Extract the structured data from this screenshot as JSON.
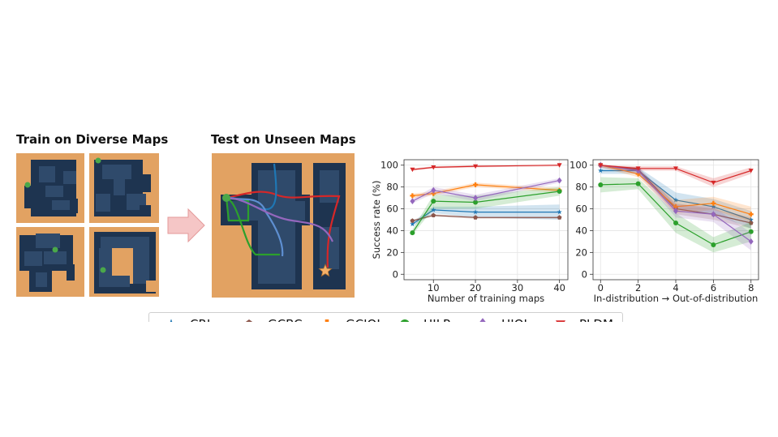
{
  "panels": {
    "train_title": "Train on Diverse Maps",
    "test_title": "Test on Unseen Maps"
  },
  "colors": {
    "floor": "#e2a262",
    "wall": "#1e3450",
    "corridor": "#2f4a6b",
    "agent": "#4aa84a",
    "goal": "#f4b069",
    "arrow": "#f5c6c6"
  },
  "legend": [
    "CRL",
    "GCBC",
    "GCIQL",
    "HILP",
    "HIQL",
    "PLDM"
  ],
  "chart_data": [
    {
      "type": "line",
      "title": "",
      "xlabel": "Number of training maps",
      "ylabel": "Success rate (%)",
      "xlim": [
        3,
        42
      ],
      "ylim": [
        -5,
        105
      ],
      "xticks": [
        10,
        20,
        30,
        40
      ],
      "yticks": [
        0,
        20,
        40,
        60,
        80,
        100
      ],
      "grid": true,
      "x": [
        5,
        10,
        20,
        40
      ],
      "series": [
        {
          "name": "CRL",
          "color": "#1f77b4",
          "marker": "star",
          "values": [
            46,
            59,
            57,
            57
          ],
          "band": [
            [
              44,
              48
            ],
            [
              56,
              62
            ],
            [
              52,
              62
            ],
            [
              50,
              64
            ]
          ]
        },
        {
          "name": "GCBC",
          "color": "#8c564b",
          "marker": "pentagon",
          "values": [
            49,
            54,
            52,
            52
          ],
          "band": [
            [
              48,
              50
            ],
            [
              53,
              55
            ],
            [
              51,
              53
            ],
            [
              51,
              53
            ]
          ]
        },
        {
          "name": "GCIQL",
          "color": "#ff7f0e",
          "marker": "plus",
          "values": [
            72,
            74,
            82,
            77
          ],
          "band": [
            [
              70,
              74
            ],
            [
              72,
              76
            ],
            [
              80,
              84
            ],
            [
              75,
              79
            ]
          ]
        },
        {
          "name": "HILP",
          "color": "#2ca02c",
          "marker": "circle",
          "values": [
            38,
            67,
            66,
            76
          ],
          "band": [
            [
              36,
              41
            ],
            [
              60,
              73
            ],
            [
              60,
              72
            ],
            [
              72,
              80
            ]
          ]
        },
        {
          "name": "HIQL",
          "color": "#9467bd",
          "marker": "diamond",
          "values": [
            67,
            77,
            70,
            86
          ],
          "band": [
            [
              65,
              69
            ],
            [
              74,
              80
            ],
            [
              67,
              73
            ],
            [
              84,
              88
            ]
          ]
        },
        {
          "name": "PLDM",
          "color": "#d62728",
          "marker": "triangle",
          "values": [
            96,
            98,
            99,
            100
          ],
          "band": [
            [
              95,
              97
            ],
            [
              97,
              99
            ],
            [
              98,
              100
            ],
            [
              99,
              100
            ]
          ]
        }
      ]
    },
    {
      "type": "line",
      "title": "",
      "xlabel": "In-distribution → Out-of-distribution",
      "ylabel": "",
      "xlim": [
        -0.4,
        8.4
      ],
      "ylim": [
        -5,
        105
      ],
      "xticks": [
        0,
        2,
        4,
        6,
        8
      ],
      "yticks": [
        0,
        20,
        40,
        60,
        80,
        100
      ],
      "grid": true,
      "x": [
        0,
        2,
        4,
        6,
        8
      ],
      "series": [
        {
          "name": "CRL",
          "color": "#1f77b4",
          "marker": "star",
          "values": [
            95,
            95,
            68,
            62,
            50
          ],
          "band": [
            [
              92,
              98
            ],
            [
              92,
              98
            ],
            [
              60,
              75
            ],
            [
              55,
              69
            ],
            [
              42,
              58
            ]
          ]
        },
        {
          "name": "GCBC",
          "color": "#8c564b",
          "marker": "pentagon",
          "values": [
            100,
            96,
            60,
            55,
            47
          ],
          "band": [
            [
              98,
              100
            ],
            [
              94,
              98
            ],
            [
              55,
              65
            ],
            [
              50,
              60
            ],
            [
              42,
              52
            ]
          ]
        },
        {
          "name": "GCIQL",
          "color": "#ff7f0e",
          "marker": "plus",
          "values": [
            100,
            92,
            62,
            65,
            55
          ],
          "band": [
            [
              98,
              100
            ],
            [
              89,
              95
            ],
            [
              56,
              68
            ],
            [
              59,
              71
            ],
            [
              48,
              62
            ]
          ]
        },
        {
          "name": "HILP",
          "color": "#2ca02c",
          "marker": "circle",
          "values": [
            82,
            83,
            47,
            27,
            39
          ],
          "band": [
            [
              75,
              89
            ],
            [
              78,
              88
            ],
            [
              38,
              56
            ],
            [
              20,
              34
            ],
            [
              30,
              48
            ]
          ]
        },
        {
          "name": "HIQL",
          "color": "#9467bd",
          "marker": "diamond",
          "values": [
            100,
            95,
            58,
            55,
            30
          ],
          "band": [
            [
              98,
              100
            ],
            [
              92,
              98
            ],
            [
              52,
              64
            ],
            [
              48,
              62
            ],
            [
              22,
              38
            ]
          ]
        },
        {
          "name": "PLDM",
          "color": "#d62728",
          "marker": "triangle",
          "values": [
            100,
            97,
            97,
            84,
            95
          ],
          "band": [
            [
              99,
              100
            ],
            [
              95,
              99
            ],
            [
              95,
              99
            ],
            [
              80,
              88
            ],
            [
              92,
              98
            ]
          ]
        }
      ]
    }
  ]
}
